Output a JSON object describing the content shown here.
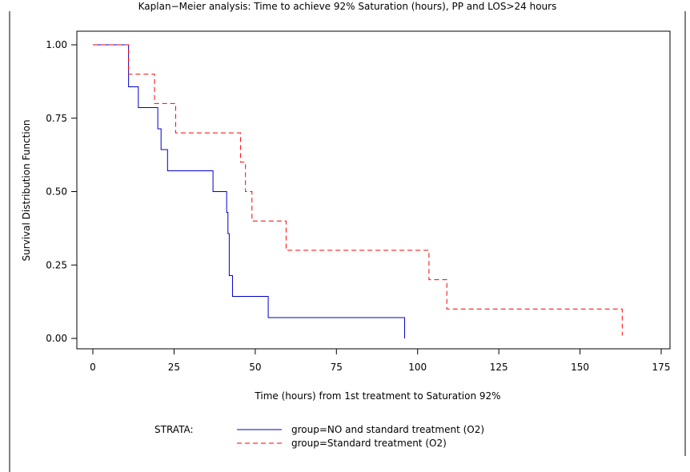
{
  "chart_data": {
    "type": "line",
    "step": true,
    "title": "Kaplan−Meier analysis: Time to achieve 92% Saturation (hours), PP and LOS>24 hours",
    "xlabel": "Time (hours) from 1st treatment to Saturation 92%",
    "ylabel": "Survival Distribution Function",
    "xlim": [
      0,
      175
    ],
    "ylim": [
      0,
      1
    ],
    "x_ticks": [
      "0",
      "25",
      "50",
      "75",
      "100",
      "125",
      "150",
      "175"
    ],
    "x_tick_values": [
      0,
      25,
      50,
      75,
      100,
      125,
      150,
      175
    ],
    "y_ticks": [
      "0.00",
      "0.25",
      "0.50",
      "0.75",
      "1.00"
    ],
    "y_tick_values": [
      0,
      0.25,
      0.5,
      0.75,
      1
    ],
    "grid": false,
    "legend_title": "STRATA:",
    "legend_position": "bottom",
    "series": [
      {
        "name": "group=NO and standard treatment (O2)",
        "color": "#0000cc",
        "dash": "solid",
        "x": [
          0,
          11,
          14,
          20,
          21,
          23,
          37,
          41.2,
          41.6,
          42,
          43,
          54,
          96,
          96
        ],
        "y": [
          1,
          0.857,
          0.786,
          0.714,
          0.643,
          0.571,
          0.5,
          0.429,
          0.357,
          0.214,
          0.143,
          0.071,
          0.071,
          0
        ]
      },
      {
        "name": "group=Standard treatment (O2)",
        "color": "#ff0000",
        "dash": "dashed",
        "x": [
          0,
          11,
          19,
          25.5,
          45.5,
          47,
          49,
          59.5,
          103.5,
          109,
          163,
          163
        ],
        "y": [
          1,
          0.9,
          0.8,
          0.7,
          0.6,
          0.5,
          0.4,
          0.3,
          0.2,
          0.1,
          0.1,
          0.01
        ]
      }
    ]
  }
}
